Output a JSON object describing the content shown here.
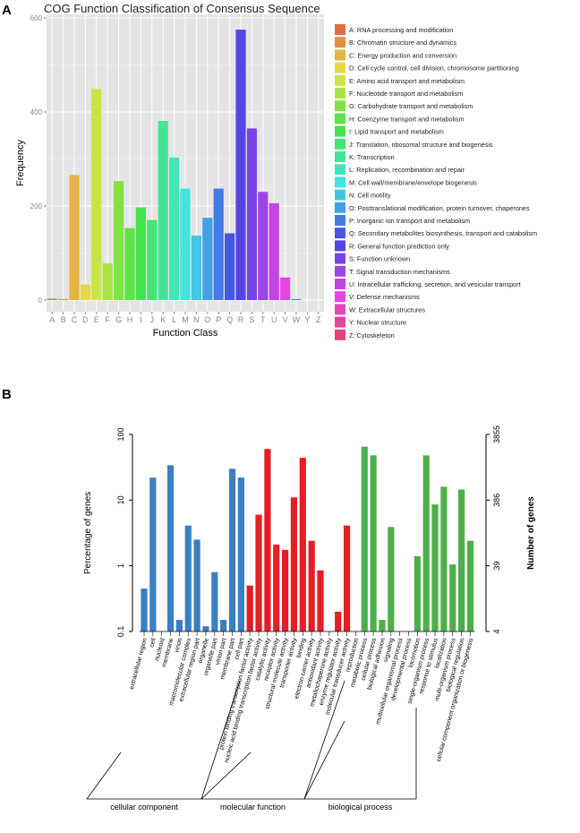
{
  "chart_data": [
    {
      "type": "bar",
      "panel_label": "A",
      "title": "COG Function Classification of Consensus Sequence",
      "xlabel": "Function Class",
      "ylabel": "Frequency",
      "ylim": [
        0,
        600
      ],
      "yticks": [
        "0",
        "200",
        "400",
        "600"
      ],
      "categories": [
        "A",
        "B",
        "C",
        "D",
        "E",
        "F",
        "G",
        "H",
        "I",
        "J",
        "K",
        "L",
        "M",
        "N",
        "O",
        "P",
        "Q",
        "R",
        "S",
        "T",
        "U",
        "V",
        "W",
        "Y",
        "Z"
      ],
      "values": [
        3,
        2,
        266,
        33,
        449,
        78,
        253,
        153,
        197,
        170,
        381,
        303,
        237,
        137,
        175,
        237,
        142,
        575,
        365,
        230,
        206,
        48,
        2,
        0,
        0
      ],
      "legend": [
        "A: RNA processing and modification",
        "B: Chromatin structure and dynamics",
        "C: Energy production and conversion",
        "D: Cell cycle control, cell division, chromosome partitioning",
        "E: Amino acid transport and metabolism",
        "F: Nucleotide transport and metabolism",
        "G: Carbohydrate transport and metabolism",
        "H: Coenzyme transport and metabolism",
        "I: Lipid transport and metabolism",
        "J: Translation, ribosomal structure and biogenesis",
        "K: Transcription",
        "L: Replication, recombination and repair",
        "M: Cell wall/membrane/envelope biogenesis",
        "N: Cell motility",
        "O: Posttranslational modification, protein turnover, chaperones",
        "P: Inorganic ion transport and metabolism",
        "Q: Secondary metabolites biosynthesis, transport and catabolism",
        "R: General function prediction only",
        "S: Function unknown",
        "T: Signal transduction mechanisms",
        "U: Intracellular trafficking, secretion, and vesicular transport",
        "V: Defense mechanisms",
        "W: Extracellular structures",
        "Y: Nuclear structure",
        "Z: Cytoskeleton"
      ],
      "legend_position": "right",
      "grid": true
    },
    {
      "type": "bar",
      "panel_label": "B",
      "ylabel": "Percentage of genes",
      "ylabel_right": "Number of genes",
      "yscale": "log",
      "ylim": [
        0.1,
        100
      ],
      "yticks": [
        "0.1",
        "1",
        "10",
        "100"
      ],
      "yticks_right": [
        "4",
        "39",
        "386",
        "3855"
      ],
      "groups": [
        {
          "name": "cellular component",
          "color": "#3a7fc1",
          "categories": [
            "extracellular region",
            "cell",
            "nucleoid",
            "membrane",
            "virion",
            "macromolecular complex",
            "extracellular region part",
            "organelle",
            "organelle part",
            "virion part",
            "membrane part",
            "cell part"
          ],
          "values": [
            0.45,
            22,
            0,
            34,
            0.15,
            4.1,
            2.5,
            0.12,
            0.8,
            0.15,
            30,
            22
          ]
        },
        {
          "name": "molecular function",
          "color": "#e31e24",
          "categories": [
            "protein binding transcription factor activity",
            "nucleic acid binding transcription factor activity",
            "catalytic activity",
            "receptor activity",
            "structural molecule activity",
            "transporter activity",
            "binding",
            "electron carrier activity",
            "antioxidant activity",
            "metallochaperone activity",
            "enzyme regulator activity",
            "molecular transducer activity"
          ],
          "values": [
            0.5,
            6,
            60,
            2.1,
            1.75,
            11,
            44,
            2.4,
            0.85,
            0,
            0.2,
            4.1
          ]
        },
        {
          "name": "biological process",
          "color": "#4daf4a",
          "categories": [
            "reproduction",
            "metabolic process",
            "cellular process",
            "biological adhesion",
            "signaling",
            "multicellular organismal process",
            "developmental process",
            "locomotion",
            "single-organism process",
            "response to stimulus",
            "localization",
            "multi-organism process",
            "biological regulation",
            "cellular component organization or biogenesis"
          ],
          "values": [
            0.1,
            65,
            48,
            0.15,
            3.9,
            0,
            0,
            1.4,
            48,
            8.6,
            16,
            1.05,
            14.5,
            2.4
          ]
        }
      ]
    }
  ]
}
